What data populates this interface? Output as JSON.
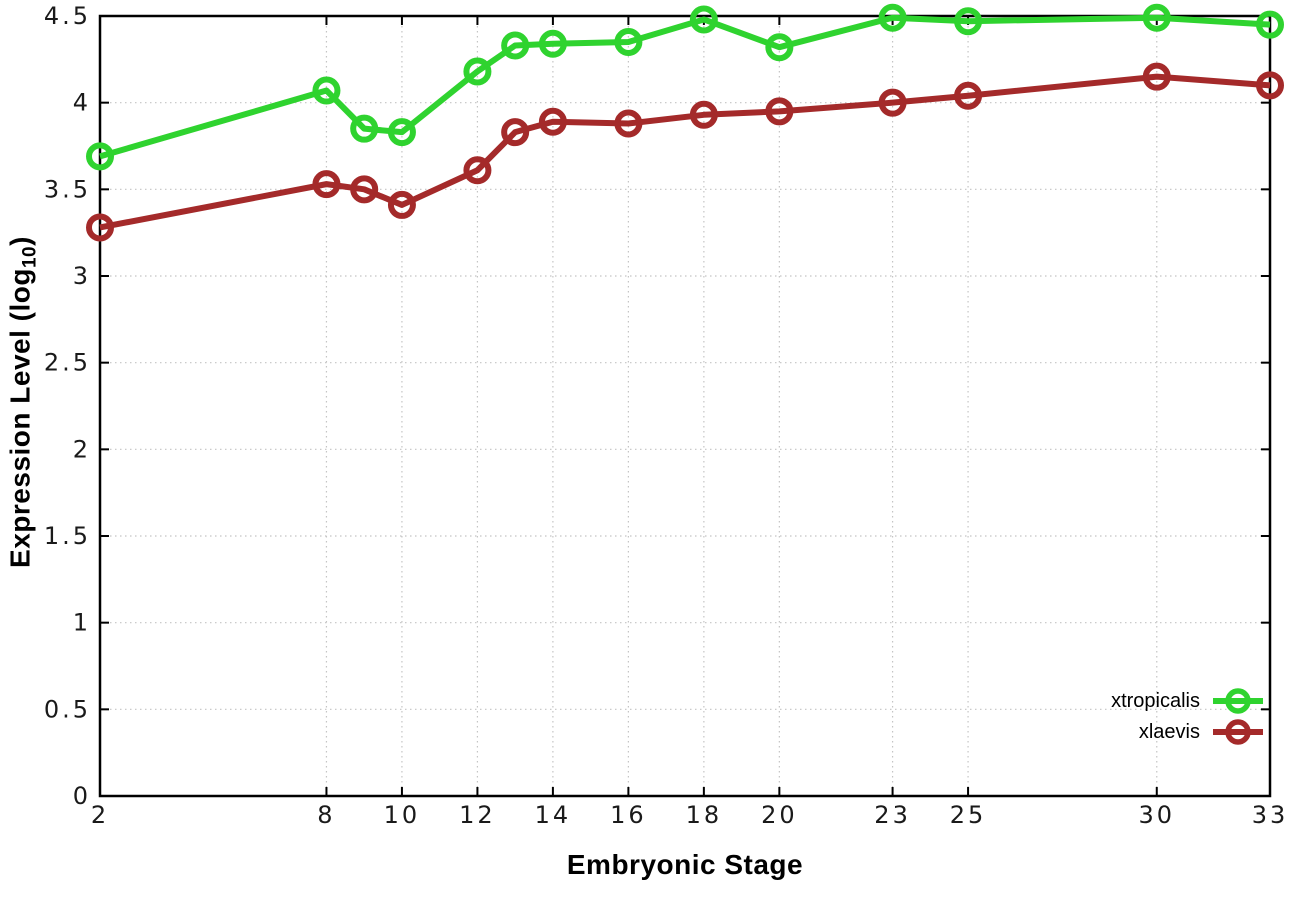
{
  "chart_data": {
    "type": "line",
    "title": "",
    "xlabel": "Embryonic Stage",
    "ylabel": "Expression Level (log10)",
    "ylabel_rich": {
      "pre": "Expression Level (log",
      "sub": "10",
      "post": ")"
    },
    "xlim": [
      2,
      33
    ],
    "ylim": [
      0,
      4.5
    ],
    "grid": true,
    "legend_position": "bottom-right",
    "x_tick_values": [
      2,
      8,
      10,
      12,
      14,
      16,
      18,
      20,
      23,
      25,
      30,
      33
    ],
    "x_tick_labels": [
      "2",
      "8",
      "10",
      "12",
      "14",
      "16",
      "18",
      "20",
      "23",
      "25",
      "30",
      "33"
    ],
    "y_tick_values": [
      0,
      0.5,
      1,
      1.5,
      2,
      2.5,
      3,
      3.5,
      4,
      4.5
    ],
    "y_tick_labels": [
      "0",
      "0.5",
      "1",
      "1.5",
      "2",
      "2.5",
      "3",
      "3.5",
      "4",
      "4.5"
    ],
    "x": [
      2,
      8,
      9,
      10,
      12,
      13,
      14,
      16,
      18,
      20,
      23,
      25,
      30,
      33
    ],
    "series": [
      {
        "name": "xtropicalis",
        "color": "#2fd32f",
        "values": [
          3.69,
          4.07,
          3.85,
          3.83,
          4.18,
          4.33,
          4.34,
          4.35,
          4.48,
          4.32,
          4.49,
          4.47,
          4.49,
          4.45
        ]
      },
      {
        "name": "xlaevis",
        "color": "#a42a2a",
        "values": [
          3.28,
          3.53,
          3.5,
          3.41,
          3.61,
          3.83,
          3.89,
          3.88,
          3.93,
          3.95,
          4.0,
          4.04,
          4.15,
          4.1
        ]
      }
    ],
    "colors": {
      "grid": "#c4c4c4",
      "axis": "#000000",
      "tick_label": "#1a1a1a"
    }
  }
}
